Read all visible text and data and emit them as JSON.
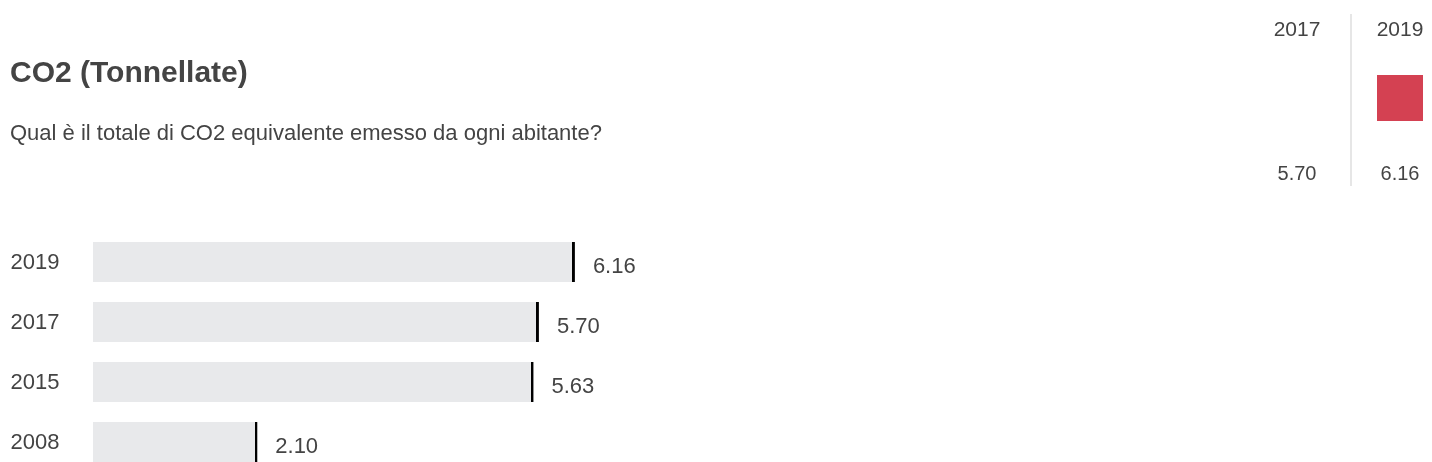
{
  "chart_data": [
    {
      "type": "bar",
      "title": "CO2 (Tonnellate)",
      "subtitle": "Qual è il totale di CO2 equivalente emesso da ogni abitante?",
      "orientation": "horizontal",
      "categories": [
        "2019",
        "2017",
        "2015",
        "2008"
      ],
      "values": [
        6.16,
        5.7,
        5.63,
        2.1
      ],
      "value_labels": [
        "6.16",
        "5.70",
        "5.63",
        "2.10"
      ],
      "color": "#e8e9eb"
    },
    {
      "type": "other",
      "categories": [
        "2017",
        "2019"
      ],
      "values": [
        5.7,
        6.16
      ],
      "value_labels": [
        "5.70",
        "6.16"
      ],
      "colors": [
        null,
        "#d44152"
      ]
    }
  ]
}
